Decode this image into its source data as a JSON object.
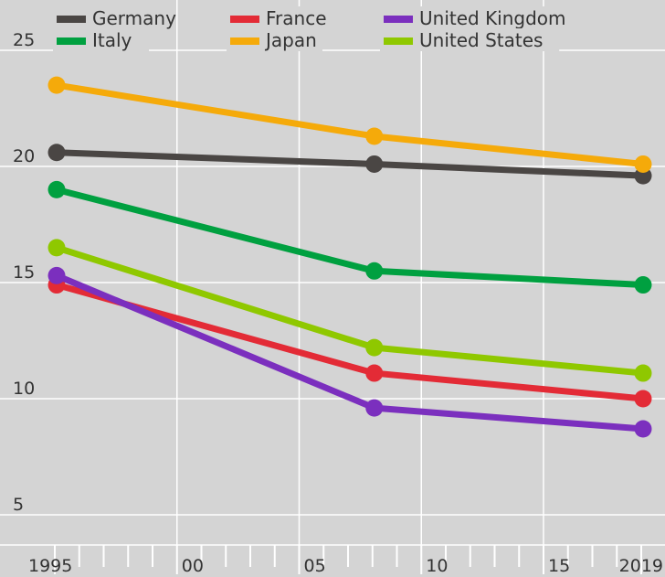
{
  "chart_data": {
    "type": "line",
    "x": [
      1995,
      2008,
      2019
    ],
    "series": [
      {
        "name": "Germany",
        "color": "#4a4644",
        "values": [
          20.6,
          20.1,
          19.6
        ]
      },
      {
        "name": "France",
        "color": "#e32b36",
        "values": [
          14.9,
          11.1,
          10.0
        ]
      },
      {
        "name": "United Kingdom",
        "color": "#7b2fbe",
        "values": [
          15.3,
          9.6,
          8.7
        ]
      },
      {
        "name": "Italy",
        "color": "#00a040",
        "values": [
          19.0,
          15.5,
          14.9
        ]
      },
      {
        "name": "Japan",
        "color": "#f5aa0a",
        "values": [
          23.5,
          21.3,
          20.1
        ]
      },
      {
        "name": "United States",
        "color": "#8fc800",
        "values": [
          16.5,
          12.2,
          11.1
        ]
      }
    ],
    "y_ticks": [
      "5",
      "10",
      "15",
      "20",
      "25"
    ],
    "x_tick_labels": [
      {
        "year": 1995,
        "label": "1995"
      },
      {
        "year": 2000,
        "label": "00"
      },
      {
        "year": 2005,
        "label": "05"
      },
      {
        "year": 2010,
        "label": "10"
      },
      {
        "year": 2015,
        "label": "15"
      },
      {
        "year": 2019,
        "label": "2019"
      }
    ],
    "ylim": [
      4.5,
      26.5
    ],
    "xlim": [
      1995,
      2019
    ],
    "grid": true,
    "legend_position": "top"
  }
}
